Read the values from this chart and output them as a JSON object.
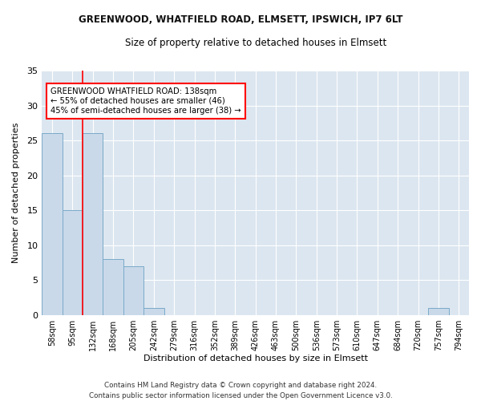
{
  "title": "GREENWOOD, WHATFIELD ROAD, ELMSETT, IPSWICH, IP7 6LT",
  "subtitle": "Size of property relative to detached houses in Elmsett",
  "xlabel": "Distribution of detached houses by size in Elmsett",
  "ylabel": "Number of detached properties",
  "bar_color": "#c9d9ea",
  "bar_edge_color": "#7aaac8",
  "background_color": "#dce6f0",
  "fig_background": "#ffffff",
  "bin_labels": [
    "58sqm",
    "95sqm",
    "132sqm",
    "168sqm",
    "205sqm",
    "242sqm",
    "279sqm",
    "316sqm",
    "352sqm",
    "389sqm",
    "426sqm",
    "463sqm",
    "500sqm",
    "536sqm",
    "573sqm",
    "610sqm",
    "647sqm",
    "684sqm",
    "720sqm",
    "757sqm",
    "794sqm"
  ],
  "bin_values": [
    26,
    15,
    26,
    8,
    7,
    1,
    0,
    0,
    0,
    0,
    0,
    0,
    0,
    0,
    0,
    0,
    0,
    0,
    0,
    1,
    0
  ],
  "property_label": "GREENWOOD WHATFIELD ROAD: 138sqm",
  "annotation_line1": "← 55% of detached houses are smaller (46)",
  "annotation_line2": "45% of semi-detached houses are larger (38) →",
  "red_line_bin_index": 2,
  "ylim": [
    0,
    35
  ],
  "yticks": [
    0,
    5,
    10,
    15,
    20,
    25,
    30,
    35
  ],
  "footnote1": "Contains HM Land Registry data © Crown copyright and database right 2024.",
  "footnote2": "Contains public sector information licensed under the Open Government Licence v3.0."
}
